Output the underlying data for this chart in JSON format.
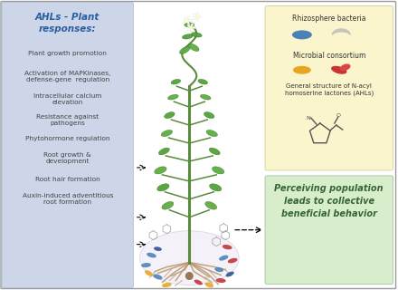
{
  "title": "AHLs - Plant\nresponses:",
  "left_panel_bg": "#ccd6e8",
  "left_panel_items": [
    "Plant growth promotion",
    "Activation of MAPKinases,\ndefense-gene  regulation",
    "Intracellular calcium\nelevation",
    "Resistance against\npathogens",
    "Phytohormone regulation",
    "Root growth &\ndevelopment",
    "Root hair formation",
    "Auxin-induced adventitious\nroot formation"
  ],
  "right_top_bg": "#faf5cc",
  "right_top_title1": "Rhizosphere bacteria",
  "right_top_title2": "Microbial consortium",
  "right_top_title3": "General structure of N-acyl\nhomoserine lactones (AHLs)",
  "right_bottom_bg": "#d8edcc",
  "right_bottom_text": "Perceiving population\nleads to collective\nbeneficial behavior",
  "outer_border": "#999999",
  "title_color": "#2a5f9f",
  "item_color": "#444444",
  "fig_bg": "#ffffff"
}
